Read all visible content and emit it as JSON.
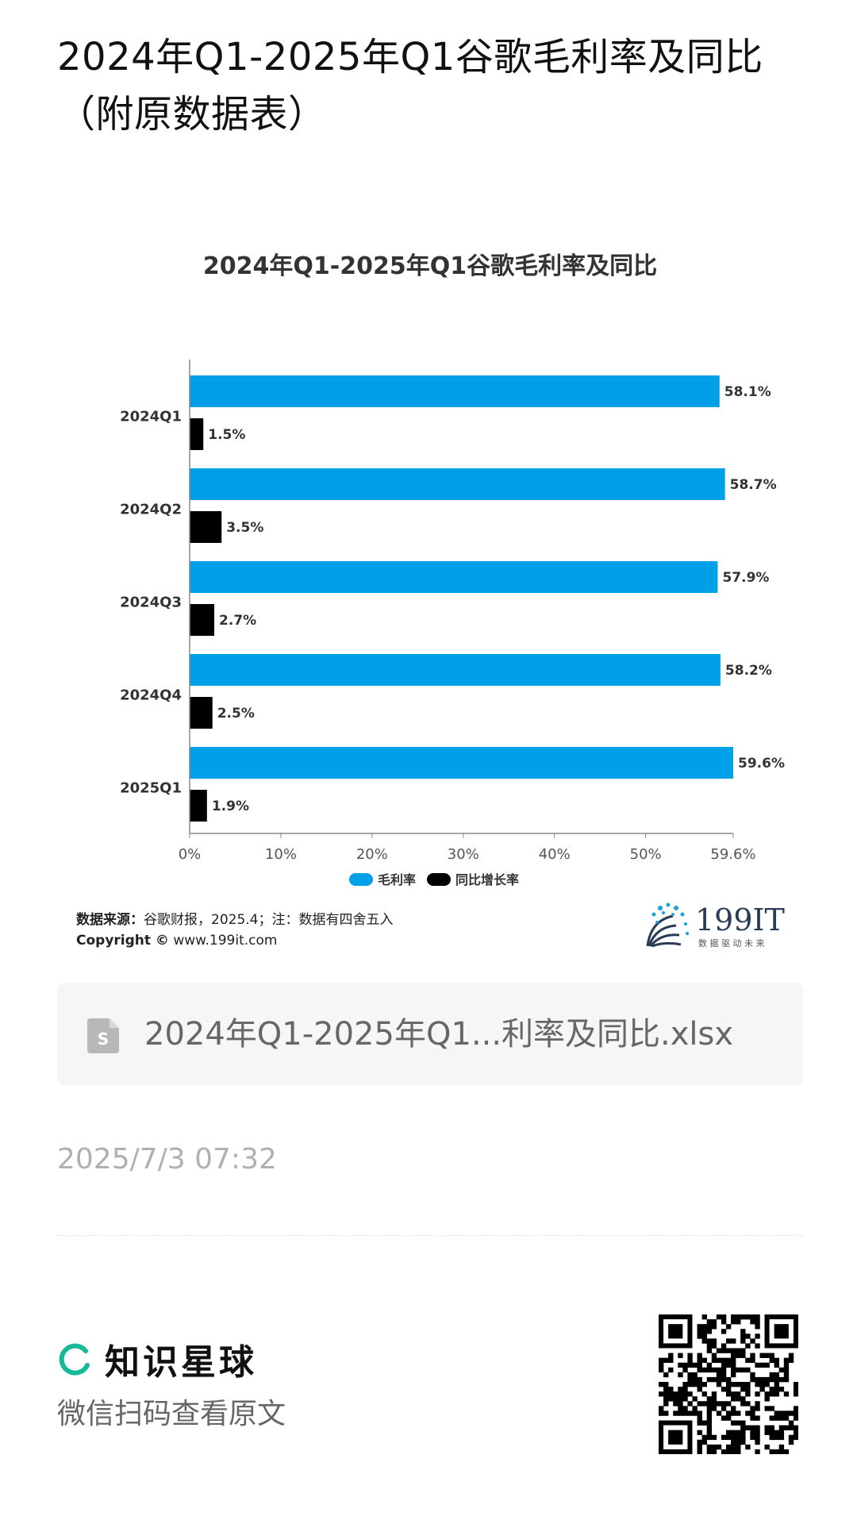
{
  "page": {
    "title": "2024年Q1-2025年Q1谷歌毛利率及同比（附原数据表）"
  },
  "chart_data": {
    "type": "bar",
    "orientation": "horizontal",
    "title": "2024年Q1-2025年Q1谷歌毛利率及同比",
    "categories": [
      "2024Q1",
      "2024Q2",
      "2024Q3",
      "2024Q4",
      "2025Q1"
    ],
    "series": [
      {
        "name": "毛利率",
        "values": [
          58.1,
          58.7,
          57.9,
          58.2,
          59.6
        ],
        "labels": [
          "58.1%",
          "58.7%",
          "57.9%",
          "58.2%",
          "59.6%"
        ],
        "color": "#00A0E9"
      },
      {
        "name": "同比增长率",
        "values": [
          1.5,
          3.5,
          2.7,
          2.5,
          1.9
        ],
        "labels": [
          "1.5%",
          "3.5%",
          "2.7%",
          "2.5%",
          "1.9%"
        ],
        "color": "#000000"
      }
    ],
    "xlim": [
      0,
      59.6
    ],
    "x_ticks": [
      "0%",
      "10%",
      "20%",
      "30%",
      "40%",
      "50%",
      "59.6%"
    ],
    "x_tick_values": [
      0,
      10,
      20,
      30,
      40,
      50,
      59.6
    ],
    "legend_position": "bottom",
    "grid": false
  },
  "source": {
    "label": "数据来源：",
    "text": "谷歌财报，2025.4；注：数据有四舍五入",
    "copyright_label": "Copyright ©",
    "copyright_text": " www.199it.com"
  },
  "logo": {
    "name": "199IT",
    "tagline": "数 据 驱 动 未 来"
  },
  "file_card": {
    "filename": "2024年Q1-2025年Q1...利率及同比.xlsx",
    "icon": "spreadsheet-file-icon",
    "icon_letter": "S"
  },
  "timestamp": "2025/7/3 07:32",
  "footer": {
    "brand": "知识星球",
    "scan_hint": "微信扫码查看原文",
    "brand_color": "#16B998"
  }
}
